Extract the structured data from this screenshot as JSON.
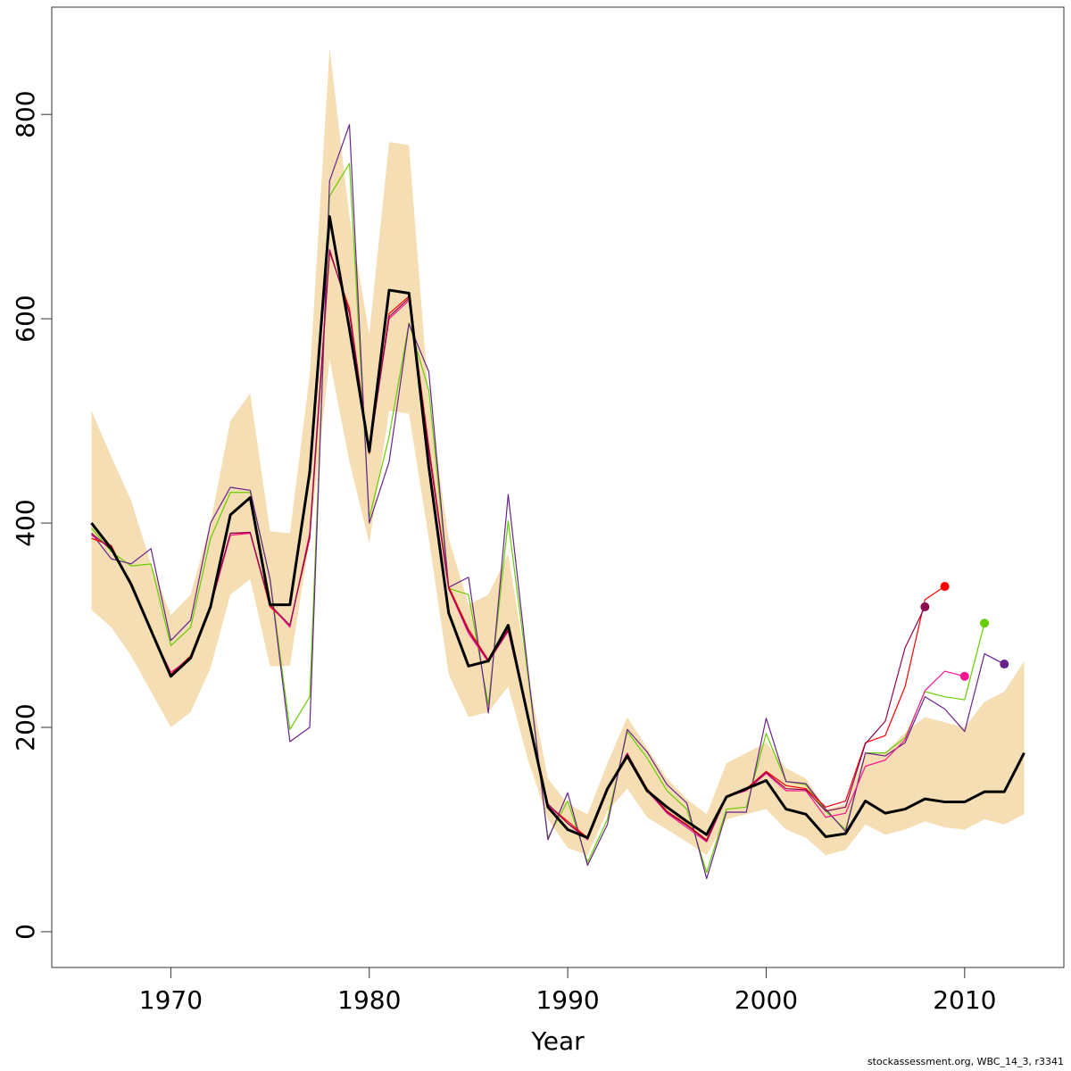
{
  "chart_data": {
    "type": "line",
    "xlabel": "Year",
    "ylabel": "",
    "xlim": [
      1964,
      2015
    ],
    "ylim": [
      -35,
      905
    ],
    "x_ticks": [
      1970,
      1980,
      1990,
      2000,
      2010
    ],
    "y_ticks": [
      0,
      200,
      400,
      600,
      800
    ],
    "grid": false,
    "colors": {
      "band": "#f5deb3",
      "main": "#000000",
      "end_markers": [
        "#8b0a50",
        "#ff0000",
        "#ff1493",
        "#66cd00",
        "#68228b"
      ]
    },
    "band": {
      "name": "",
      "x": [
        1966,
        1967,
        1968,
        1969,
        1970,
        1971,
        1972,
        1973,
        1974,
        1975,
        1976,
        1977,
        1978,
        1979,
        1980,
        1981,
        1982,
        1983,
        1984,
        1985,
        1986,
        1987,
        1988,
        1989,
        1990,
        1991,
        1992,
        1993,
        1994,
        1995,
        1996,
        1997,
        1998,
        1999,
        2000,
        2001,
        2002,
        2003,
        2004,
        2005,
        2006,
        2007,
        2008,
        2009,
        2010,
        2011,
        2012,
        2013
      ],
      "upper": [
        510,
        465,
        422,
        360,
        310,
        330,
        400,
        500,
        527,
        392,
        390,
        545,
        865,
        700,
        585,
        773,
        770,
        520,
        385,
        320,
        330,
        370,
        250,
        150,
        125,
        115,
        165,
        210,
        180,
        150,
        130,
        115,
        165,
        175,
        185,
        160,
        150,
        120,
        125,
        175,
        175,
        195,
        210,
        205,
        200,
        225,
        235,
        265
      ],
      "lower": [
        315,
        298,
        270,
        235,
        200,
        215,
        258,
        330,
        345,
        260,
        260,
        385,
        560,
        460,
        380,
        510,
        507,
        385,
        252,
        210,
        215,
        240,
        168,
        110,
        82,
        75,
        118,
        140,
        112,
        100,
        88,
        75,
        110,
        115,
        120,
        100,
        92,
        75,
        80,
        105,
        95,
        100,
        108,
        102,
        100,
        110,
        105,
        115
      ]
    },
    "series": [
      {
        "name": "",
        "color": "#000000",
        "x": [
          1966,
          1967,
          1968,
          1969,
          1970,
          1971,
          1972,
          1973,
          1974,
          1975,
          1976,
          1977,
          1978,
          1979,
          1980,
          1981,
          1982,
          1983,
          1984,
          1985,
          1986,
          1987,
          1988,
          1989,
          1990,
          1991,
          1992,
          1993,
          1994,
          1995,
          1996,
          1997,
          1998,
          1999,
          2000,
          2001,
          2002,
          2003,
          2004,
          2005,
          2006,
          2007,
          2008,
          2009,
          2010,
          2011,
          2012,
          2013
        ],
        "values": [
          400,
          375,
          340,
          295,
          250,
          268,
          318,
          408,
          425,
          320,
          320,
          450,
          700,
          590,
          470,
          628,
          625,
          455,
          312,
          260,
          265,
          300,
          210,
          122,
          100,
          92,
          140,
          172,
          138,
          122,
          108,
          95,
          132,
          140,
          148,
          120,
          115,
          93,
          96,
          128,
          116,
          120,
          130,
          127,
          127,
          137,
          137,
          175
        ]
      },
      {
        "name": "",
        "color": "#66cd00",
        "end_point": true,
        "x": [
          1966,
          1967,
          1968,
          1969,
          1970,
          1971,
          1972,
          1973,
          1974,
          1975,
          1976,
          1977,
          1978,
          1979,
          1980,
          1981,
          1982,
          1983,
          1984,
          1985,
          1986,
          1987,
          1988,
          1989,
          1990,
          1991,
          1992,
          1993,
          1994,
          1995,
          1996,
          1997,
          1998,
          1999,
          2000,
          2001,
          2002,
          2003,
          2004,
          2005,
          2006,
          2007,
          2008,
          2009,
          2010,
          2011
        ],
        "values": [
          395,
          372,
          358,
          360,
          280,
          298,
          385,
          430,
          430,
          345,
          198,
          230,
          720,
          752,
          405,
          485,
          596,
          530,
          336,
          330,
          222,
          402,
          250,
          92,
          128,
          68,
          110,
          196,
          170,
          138,
          120,
          58,
          120,
          122,
          194,
          147,
          144,
          118,
          100,
          175,
          175,
          190,
          235,
          230,
          227,
          302
        ]
      },
      {
        "name": "",
        "color": "#68228b",
        "end_point": true,
        "x": [
          1966,
          1967,
          1968,
          1969,
          1970,
          1971,
          1972,
          1973,
          1974,
          1975,
          1976,
          1977,
          1978,
          1979,
          1980,
          1981,
          1982,
          1983,
          1984,
          1985,
          1986,
          1987,
          1988,
          1989,
          1990,
          1991,
          1992,
          1993,
          1994,
          1995,
          1996,
          1997,
          1998,
          1999,
          2000,
          2001,
          2002,
          2003,
          2004,
          2005,
          2006,
          2007,
          2008,
          2009,
          2010,
          2011,
          2012
        ],
        "values": [
          390,
          365,
          360,
          375,
          285,
          305,
          400,
          435,
          432,
          345,
          186,
          200,
          735,
          790,
          400,
          460,
          595,
          548,
          337,
          347,
          214,
          428,
          255,
          90,
          136,
          65,
          105,
          198,
          176,
          144,
          126,
          52,
          117,
          117,
          209,
          147,
          145,
          120,
          98,
          175,
          172,
          185,
          230,
          218,
          196,
          272,
          262
        ]
      },
      {
        "name": "",
        "color": "#ff0000",
        "end_point": true,
        "x": [
          1966,
          1967,
          1968,
          1969,
          1970,
          1971,
          1972,
          1973,
          1974,
          1975,
          1976,
          1977,
          1978,
          1979,
          1980,
          1981,
          1982,
          1983,
          1984,
          1985,
          1986,
          1987,
          1988,
          1989,
          1990,
          1991,
          1992,
          1993,
          1994,
          1995,
          1996,
          1997,
          1998,
          1999,
          2000,
          2001,
          2002,
          2003,
          2004,
          2005,
          2006,
          2007,
          2008,
          2009
        ],
        "values": [
          385,
          378,
          338,
          295,
          252,
          270,
          320,
          390,
          390,
          318,
          300,
          385,
          665,
          610,
          468,
          605,
          622,
          475,
          338,
          296,
          266,
          296,
          212,
          124,
          108,
          92,
          140,
          174,
          140,
          118,
          105,
          90,
          133,
          140,
          157,
          143,
          140,
          122,
          128,
          185,
          192,
          240,
          325,
          338
        ]
      },
      {
        "name": "",
        "color": "#ff1493",
        "end_point": true,
        "x": [
          1966,
          1967,
          1968,
          1969,
          1970,
          1971,
          1972,
          1973,
          1974,
          1975,
          1976,
          1977,
          1978,
          1979,
          1980,
          1981,
          1982,
          1983,
          1984,
          1985,
          1986,
          1987,
          1988,
          1989,
          1990,
          1991,
          1992,
          1993,
          1994,
          1995,
          1996,
          1997,
          1998,
          1999,
          2000,
          2001,
          2002,
          2003,
          2004,
          2005,
          2006,
          2007,
          2008,
          2009,
          2010
        ],
        "values": [
          388,
          376,
          340,
          294,
          254,
          268,
          318,
          388,
          390,
          320,
          298,
          390,
          668,
          605,
          470,
          600,
          618,
          470,
          336,
          292,
          264,
          294,
          210,
          124,
          106,
          90,
          138,
          175,
          138,
          116,
          102,
          88,
          132,
          138,
          155,
          138,
          138,
          112,
          116,
          162,
          168,
          188,
          236,
          255,
          250
        ]
      },
      {
        "name": "",
        "color": "#8b0a50",
        "end_point": true,
        "x": [
          1966,
          1967,
          1968,
          1969,
          1970,
          1971,
          1972,
          1973,
          1974,
          1975,
          1976,
          1977,
          1978,
          1979,
          1980,
          1981,
          1982,
          1983,
          1984,
          1985,
          1986,
          1987,
          1988,
          1989,
          1990,
          1991,
          1992,
          1993,
          1994,
          1995,
          1996,
          1997,
          1998,
          1999,
          2000,
          2001,
          2002,
          2003,
          2004,
          2005,
          2006,
          2007,
          2008
        ],
        "values": [
          390,
          374,
          342,
          296,
          250,
          268,
          320,
          390,
          391,
          320,
          300,
          388,
          667,
          606,
          470,
          602,
          620,
          472,
          336,
          294,
          265,
          295,
          211,
          125,
          106,
          91,
          139,
          174,
          139,
          117,
          104,
          89,
          132,
          139,
          156,
          140,
          139,
          118,
          122,
          184,
          206,
          278,
          318
        ]
      }
    ]
  },
  "credit": "stockassessment.org, WBC_14_3, r3341"
}
